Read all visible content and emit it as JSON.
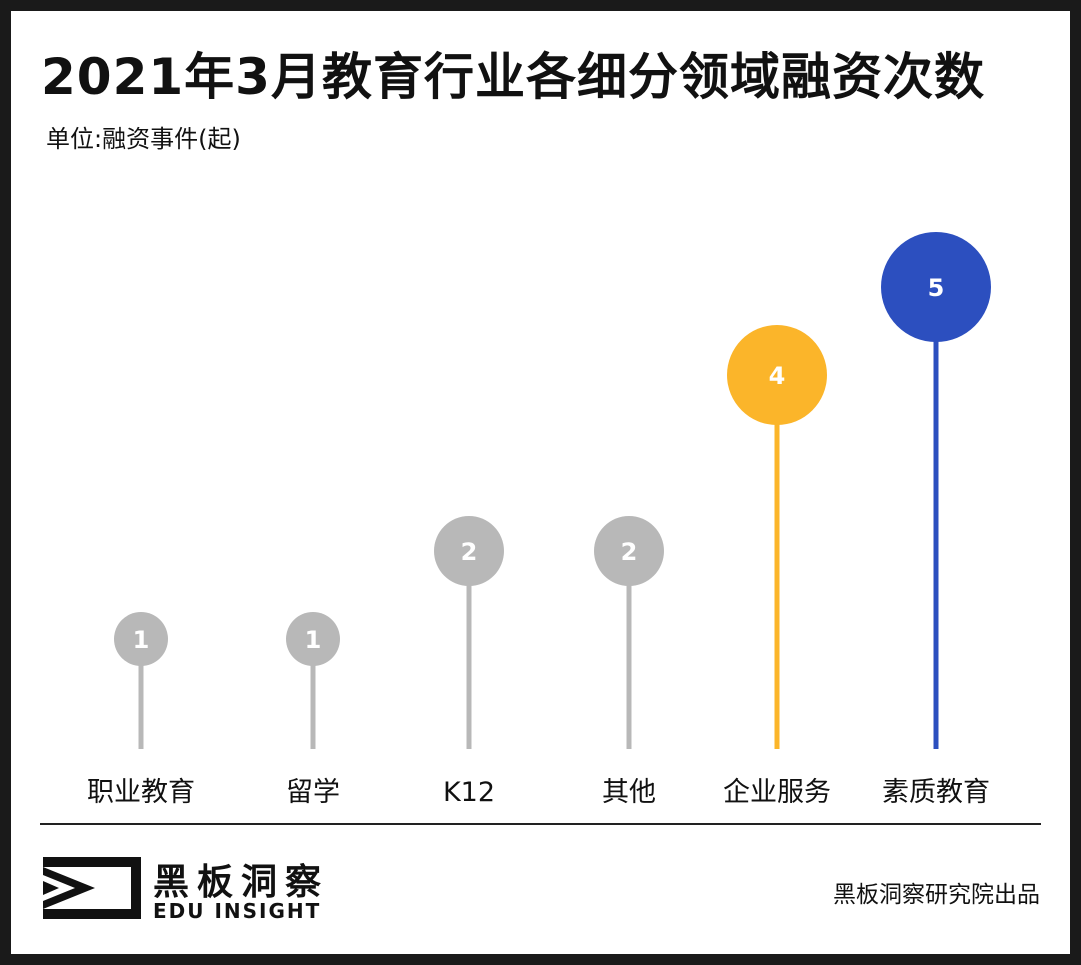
{
  "title": "2021年3月教育行业各细分领域融资次数",
  "subtitle": "单位:融资事件(起)",
  "chart_data": {
    "type": "lollipop",
    "categories": [
      "职业教育",
      "留学",
      "K12",
      "其他",
      "企业服务",
      "素质教育"
    ],
    "values": [
      1,
      1,
      2,
      2,
      4,
      5
    ],
    "colors": [
      "#b8b8b8",
      "#b8b8b8",
      "#b8b8b8",
      "#b8b8b8",
      "#fbb52a",
      "#2c4fbf"
    ],
    "value_label_color": "#ffffff",
    "ylim": [
      0,
      5
    ],
    "grid": false
  },
  "footer": {
    "logo_cn": "黑板洞察",
    "logo_en": "EDU INSIGHT",
    "logo_icon": "eye-frame-icon",
    "credit": "黑板洞察研究院出品"
  }
}
